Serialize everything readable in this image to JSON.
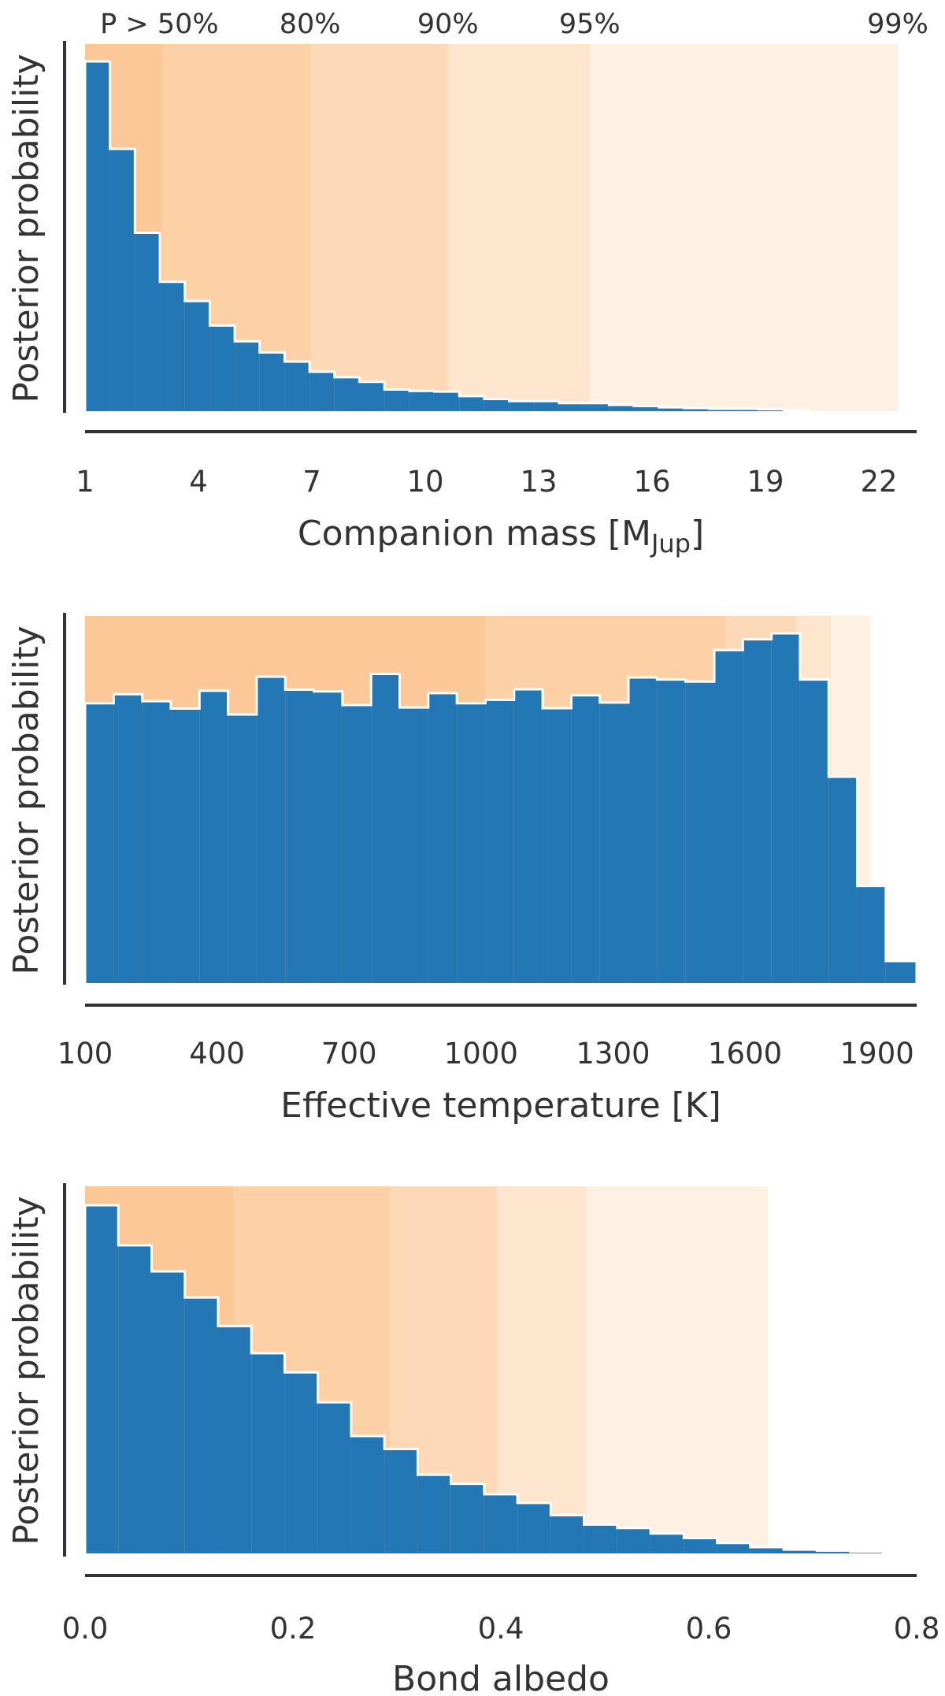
{
  "colors": {
    "bar": "#2277b4",
    "bar_edge": "#ffffff",
    "band_50": "#fdc898",
    "band_80": "#fdd0a6",
    "band_90": "#fdd9b8",
    "band_95": "#fee5cd",
    "band_99": "#fef1e3"
  },
  "chart_data": [
    {
      "type": "bar",
      "histtype": "step-filled",
      "title": "",
      "xlabel": "Companion mass [M",
      "xlabel_sub": "Jup",
      "xlabel_suffix": "]",
      "ylabel": "Posterior probability",
      "xlim": [
        1,
        23
      ],
      "xticks": [
        1,
        4,
        7,
        10,
        13,
        16,
        19,
        22
      ],
      "xtick_labels": [
        "1",
        "4",
        "7",
        "10",
        "13",
        "16",
        "19",
        "22"
      ],
      "bin_edges": [
        1,
        1.66,
        2.32,
        2.98,
        3.64,
        4.3,
        4.96,
        5.62,
        6.28,
        6.94,
        7.6,
        8.26,
        8.92,
        9.58,
        10.24,
        10.9,
        11.56,
        12.22,
        12.88,
        13.54,
        14.2,
        14.86,
        15.52,
        16.18,
        16.84,
        17.5,
        18.16,
        18.82,
        19.48,
        20.14
      ],
      "values": [
        1.0,
        0.75,
        0.51,
        0.37,
        0.315,
        0.245,
        0.2,
        0.168,
        0.142,
        0.113,
        0.097,
        0.084,
        0.062,
        0.058,
        0.056,
        0.043,
        0.035,
        0.029,
        0.029,
        0.023,
        0.023,
        0.018,
        0.015,
        0.011,
        0.009,
        0.007,
        0.007,
        0.006,
        0.003
      ],
      "credible_regions": [
        {
          "label": "P > 50%",
          "upper": 3.05
        },
        {
          "label": "80%",
          "upper": 6.95
        },
        {
          "label": "90%",
          "upper": 10.6
        },
        {
          "label": "95%",
          "upper": 14.35
        },
        {
          "label": "99%",
          "upper": 22.5
        }
      ],
      "show_band_labels": true
    },
    {
      "type": "bar",
      "histtype": "step-filled",
      "title": "",
      "xlabel": "Effective temperature [K]",
      "ylabel": "Posterior probability",
      "xlim": [
        100,
        1990
      ],
      "xticks": [
        100,
        400,
        700,
        1000,
        1300,
        1600,
        1900
      ],
      "xtick_labels": [
        "100",
        "400",
        "700",
        "1000",
        "1300",
        "1600",
        "1900"
      ],
      "bin_edges": [
        100,
        165,
        230,
        295,
        360,
        425,
        490,
        555,
        620,
        685,
        750,
        815,
        880,
        945,
        1010,
        1075,
        1140,
        1205,
        1270,
        1335,
        1400,
        1465,
        1530,
        1595,
        1660,
        1725,
        1790,
        1855,
        1920,
        1990
      ],
      "values": [
        0.8,
        0.826,
        0.806,
        0.785,
        0.836,
        0.768,
        0.876,
        0.839,
        0.834,
        0.795,
        0.884,
        0.788,
        0.829,
        0.8,
        0.81,
        0.84,
        0.786,
        0.823,
        0.802,
        0.874,
        0.868,
        0.862,
        0.952,
        0.983,
        1.0,
        0.868,
        0.59,
        0.278,
        0.063
      ],
      "credible_regions": [
        {
          "label": "P > 50%",
          "upper": 1010
        },
        {
          "label": "80%",
          "upper": 1555
        },
        {
          "label": "90%",
          "upper": 1715
        },
        {
          "label": "95%",
          "upper": 1795
        },
        {
          "label": "99%",
          "upper": 1885
        }
      ],
      "show_band_labels": false
    },
    {
      "type": "bar",
      "histtype": "step-filled",
      "title": "",
      "xlabel": "Bond albedo",
      "ylabel": "Posterior probability",
      "xlim": [
        0.0,
        0.8
      ],
      "xticks": [
        0.0,
        0.2,
        0.4,
        0.6,
        0.8
      ],
      "xtick_labels": [
        "0.0",
        "0.2",
        "0.4",
        "0.6",
        "0.8"
      ],
      "bin_edges": [
        0.0,
        0.032,
        0.064,
        0.096,
        0.128,
        0.16,
        0.192,
        0.224,
        0.256,
        0.288,
        0.32,
        0.352,
        0.384,
        0.416,
        0.448,
        0.48,
        0.512,
        0.544,
        0.576,
        0.608,
        0.64,
        0.672,
        0.704,
        0.736,
        0.768,
        0.8
      ],
      "values": [
        1.0,
        0.885,
        0.81,
        0.735,
        0.653,
        0.575,
        0.52,
        0.434,
        0.337,
        0.3,
        0.226,
        0.2,
        0.17,
        0.145,
        0.11,
        0.083,
        0.073,
        0.057,
        0.044,
        0.03,
        0.018,
        0.011,
        0.008,
        0.005,
        0.003
      ],
      "credible_regions": [
        {
          "label": "P > 50%",
          "upper": 0.143
        },
        {
          "label": "80%",
          "upper": 0.293
        },
        {
          "label": "90%",
          "upper": 0.396
        },
        {
          "label": "95%",
          "upper": 0.482
        },
        {
          "label": "99%",
          "upper": 0.657
        }
      ],
      "show_band_labels": false
    }
  ]
}
